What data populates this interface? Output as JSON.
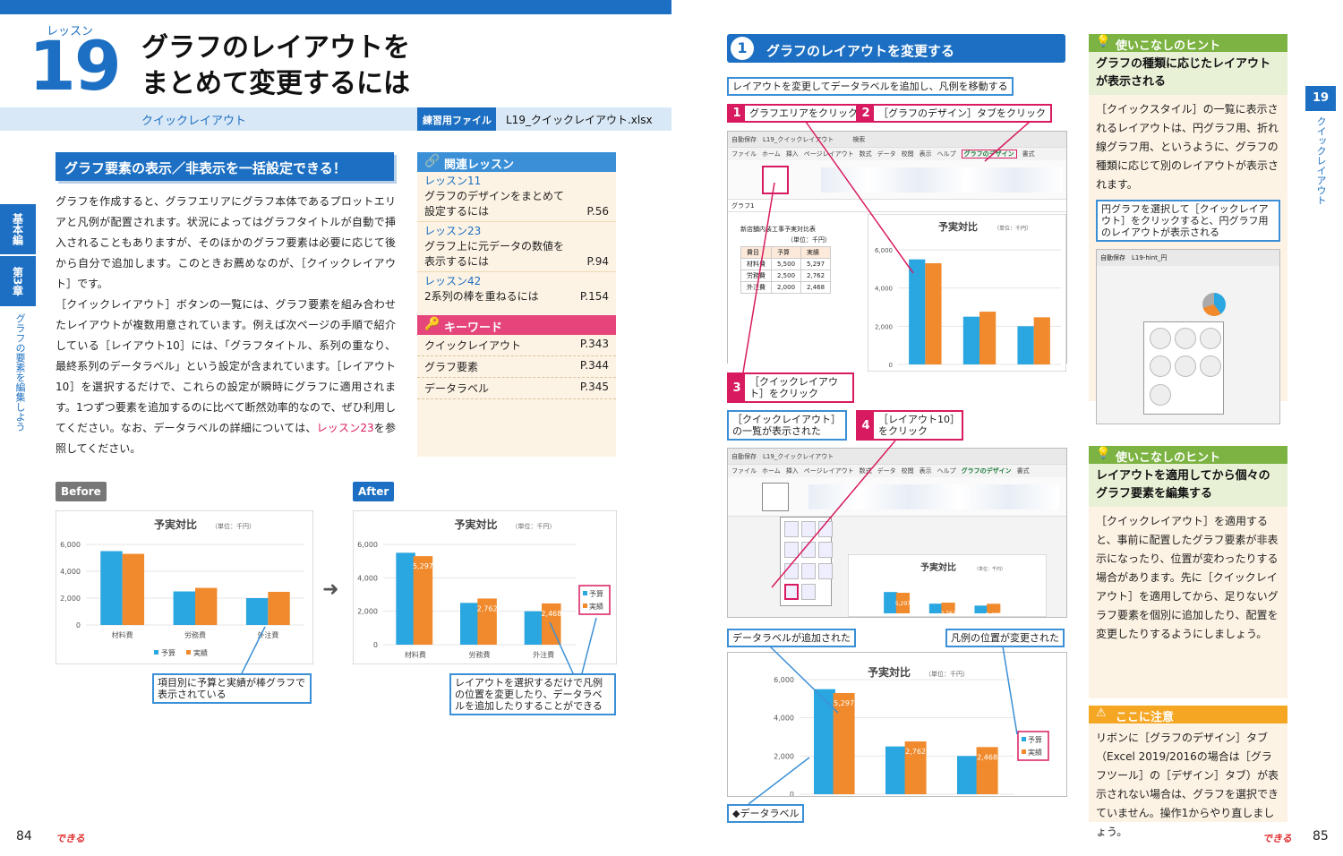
{
  "lesson": {
    "label": "レッスン",
    "number": "19",
    "title_line1": "グラフのレイアウトを",
    "title_line2": "まとめて変更するには",
    "subtitle": "クイックレイアウト",
    "practice_label": "練習用ファイル",
    "practice_file": "L19_クイックレイアウト.xlsx"
  },
  "side_tab": {
    "part": "基本編",
    "chapter": "第3章",
    "chapter_title": "グラフの要素を編集しよう"
  },
  "hero_heading": "グラフ要素の表示／非表示を一括設定できる！",
  "body": {
    "p1": "グラフを作成すると、グラフエリアにグラフ本体であるプロットエリアと凡例が配置されます。状況によってはグラフタイトルが自動で挿入されることもありますが、そのほかのグラフ要素は必要に応じて後から自分で追加します。このときお薦めなのが、［クイックレイアウト］です。",
    "p2a": "［クイックレイアウト］ボタンの一覧には、グラフ要素を組み合わせたレイアウトが複数用意されています。例えば次ページの手順で紹介している［レイアウト10］には、「グラフタイトル、系列の重なり、最終系列のデータラベル」という設定が含まれています。［レイアウト10］を選択するだけで、これらの設定が瞬時にグラフに適用されます。1つずつ要素を追加するのに比べて断然効率的なので、ぜひ利用してください。なお、データラベルの詳細については、",
    "p2link": "レッスン23",
    "p2b": "を参照してください。"
  },
  "related": {
    "heading": "関連レッスン",
    "items": [
      {
        "lesson": "レッスン11",
        "title": "グラフのデザインをまとめて",
        "title2": "設定するには",
        "page": "P.56"
      },
      {
        "lesson": "レッスン23",
        "title": "グラフ上に元データの数値を",
        "title2": "表示するには",
        "page": "P.94"
      },
      {
        "lesson": "レッスン42",
        "title": "",
        "title2": "2系列の棒を重ねるには",
        "page": "P.154"
      }
    ],
    "kw_heading": "キーワード",
    "keywords": [
      {
        "word": "クイックレイアウト",
        "page": "P.343"
      },
      {
        "word": "グラフ要素",
        "page": "P.344"
      },
      {
        "word": "データラベル",
        "page": "P.345"
      }
    ]
  },
  "before_after": {
    "before_label": "Before",
    "after_label": "After",
    "before_caption": "項目別に予算と実績が棒グラフで表示されている",
    "after_caption": "レイアウトを選択するだけで凡例の位置を変更したり、データラベルを追加したりすることができる"
  },
  "chart_data": [
    {
      "type": "bar",
      "title": "予実対比",
      "subtitle": "（単位：千円）",
      "categories": [
        "材料費",
        "労務費",
        "外注費"
      ],
      "series": [
        {
          "name": "予算",
          "values": [
            5500,
            2500,
            2000
          ]
        },
        {
          "name": "実績",
          "values": [
            5297,
            2762,
            2468
          ]
        }
      ],
      "ylim": [
        0,
        6000
      ],
      "yticks": [
        "0",
        "2,000",
        "4,000",
        "6,000"
      ],
      "legend": "bottom",
      "data_labels": false
    },
    {
      "type": "bar",
      "title": "予実対比",
      "subtitle": "（単位：千円）",
      "categories": [
        "材料費",
        "労務費",
        "外注費"
      ],
      "series": [
        {
          "name": "予算",
          "values": [
            5500,
            2500,
            2000
          ]
        },
        {
          "name": "実績",
          "values": [
            5297,
            2762,
            2468
          ]
        }
      ],
      "ylim": [
        0,
        6000
      ],
      "yticks": [
        "0",
        "2,000",
        "4,000",
        "6,000"
      ],
      "legend": "right",
      "data_labels": [
        "5,297",
        "2,762",
        "2,468"
      ]
    }
  ],
  "step": {
    "number": "1",
    "title": "グラフのレイアウトを変更する",
    "intro": "レイアウトを変更してデータラベルを追加し、凡例を移動する",
    "c1": {
      "n": "1",
      "t": "グラフエリアをクリック"
    },
    "c2": {
      "n": "2",
      "t": "［グラフのデザイン］タブをクリック"
    },
    "c3": {
      "n": "3",
      "t": "［クイックレイアウト］をクリック"
    },
    "c4": {
      "n": "4",
      "t": "［レイアウト10］をクリック"
    },
    "c_list": "［クイックレイアウト］の一覧が表示された",
    "c_label": "データラベルが追加された",
    "c_legend": "凡例の位置が変更された",
    "c_datalabel": "◆データラベル"
  },
  "excel": {
    "autosave": "自動保存",
    "filename": "L19_クイックレイアウト",
    "search": "検索",
    "tabs": [
      "ファイル",
      "ホーム",
      "挿入",
      "ページレイアウト",
      "数式",
      "データ",
      "校閲",
      "表示",
      "ヘルプ",
      "グラフのデザイン",
      "書式"
    ],
    "chart_name": "グラフ1",
    "table_title": "新店舗内装工事予実対比表",
    "unit": "（単位：千円）",
    "headers": [
      "費目",
      "予算",
      "実績"
    ],
    "rows": [
      [
        "材料費",
        "5,500",
        "5,297"
      ],
      [
        "労務費",
        "2,500",
        "2,762"
      ],
      [
        "外注費",
        "2,000",
        "2,468"
      ]
    ]
  },
  "hints": [
    {
      "heading": "使いこなしのヒント",
      "title": "グラフの種類に応じたレイアウトが表示される",
      "body": "［クイックスタイル］の一覧に表示されるレイアウトは、円グラフ用、折れ線グラフ用、というように、グラフの種類に応じて別のレイアウトが表示されます。",
      "callout": "円グラフを選択して［クイックレイアウト］をクリックすると、円グラフ用のレイアウトが表示される",
      "file": "L19-hint_円"
    },
    {
      "heading": "使いこなしのヒント",
      "title": "レイアウトを適用してから個々のグラフ要素を編集する",
      "body": "［クイックレイアウト］を適用すると、事前に配置したグラフ要素が非表示になったり、位置が変わったりする場合があります。先に［クイックレイアウト］を適用してから、足りないグラフ要素を個別に追加したり、配置を変更したりするようにしましょう。"
    }
  ],
  "warning": {
    "heading": "ここに注意",
    "body": "リボンに［グラフのデザイン］タブ（Excel 2019/2016の場合は［グラフツール］の［デザイン］タブ）が表示されない場合は、グラフを選択できていません。操作1からやり直しましょう。"
  },
  "right_tab": {
    "number": "19",
    "title": "クイックレイアウト"
  },
  "footer": {
    "left_page": "84",
    "right_page": "85",
    "brand": "できる"
  },
  "colors": {
    "blue": "#1c6fc2",
    "pink": "#d81b60",
    "orange": "#f08a2c",
    "bar_blue": "#2aa6e0",
    "green": "#7cb342"
  }
}
